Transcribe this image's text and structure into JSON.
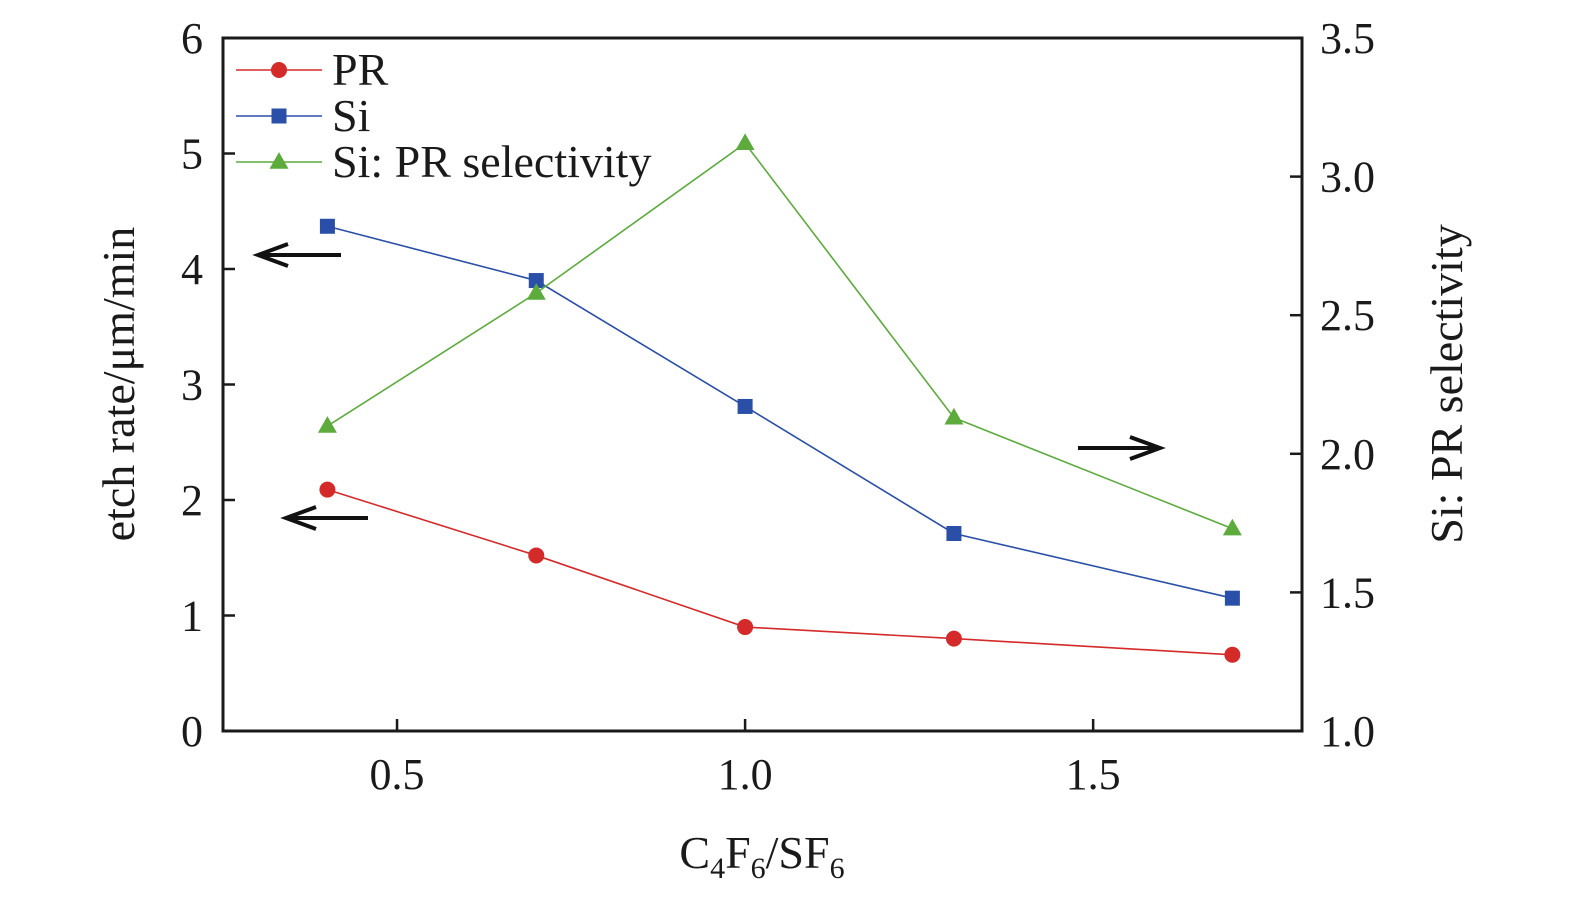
{
  "chart_data": {
    "type": "line",
    "x": [
      0.4,
      0.7,
      1.0,
      1.3,
      1.7
    ],
    "xlim": [
      0.25,
      1.8
    ],
    "xticks": [
      "0.5",
      "1.0",
      "1.5"
    ],
    "xtick_values": [
      0.5,
      1.0,
      1.5
    ],
    "xlabel": {
      "c": "C",
      "s1": "4",
      "f": "F",
      "s2": "6",
      "mid": "/SF",
      "s3": "6"
    },
    "ylabel_left": "etch rate/μm/min",
    "ylim_left": [
      0,
      6
    ],
    "yticks_left": [
      "0",
      "1",
      "2",
      "3",
      "4",
      "5",
      "6"
    ],
    "ylabel_right": "Si: PR selectivity",
    "ylim_right": [
      1.0,
      3.5
    ],
    "yticks_right": [
      "1.0",
      "1.5",
      "2.0",
      "2.5",
      "3.0",
      "3.5"
    ],
    "series": [
      {
        "name": "PR",
        "axis": "left",
        "marker": "circle",
        "color": "#d42a2a",
        "values": [
          2.09,
          1.52,
          0.9,
          0.8,
          0.66
        ]
      },
      {
        "name": "Si",
        "axis": "left",
        "marker": "square",
        "color": "#2a4fa8",
        "values": [
          4.37,
          3.9,
          2.81,
          1.71,
          1.15
        ]
      },
      {
        "name": "Si: PR selectivity",
        "axis": "right",
        "marker": "triangle",
        "color": "#5cab3c",
        "values": [
          2.1,
          2.58,
          3.12,
          2.13,
          1.73
        ]
      }
    ],
    "legend_position": "top-left",
    "annotations": [
      {
        "kind": "arrow",
        "direction": "left",
        "points_to": "left axis",
        "series": "Si"
      },
      {
        "kind": "arrow",
        "direction": "left",
        "points_to": "left axis",
        "series": "PR"
      },
      {
        "kind": "arrow",
        "direction": "right",
        "points_to": "right axis",
        "series": "Si: PR selectivity"
      }
    ],
    "grid": false
  }
}
